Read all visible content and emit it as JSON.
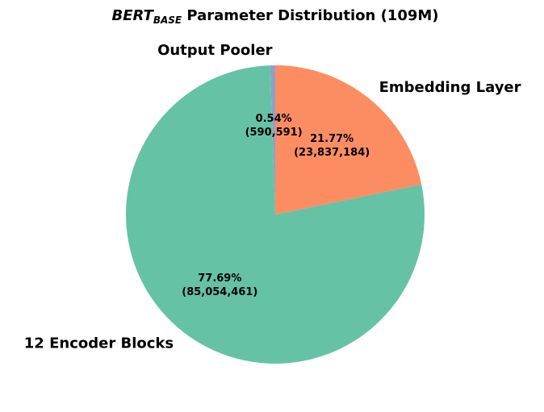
{
  "chart_data": {
    "type": "pie",
    "title": {
      "main": "BERT",
      "subscript": "BASE",
      "rest": " Parameter Distribution (109M)"
    },
    "start_angle_deg": 90,
    "direction": "counterclockwise",
    "slices": [
      {
        "label": "Output Pooler",
        "value": 590591,
        "percent_label": "0.54%",
        "count_label": "(590,591)",
        "color": "#8da0cb"
      },
      {
        "label": "12 Encoder Blocks",
        "value": 85054461,
        "percent_label": "77.69%",
        "count_label": "(85,054,461)",
        "color": "#66c2a5"
      },
      {
        "label": "Embedding Layer",
        "value": 23837184,
        "percent_label": "21.77%",
        "count_label": "(23,837,184)",
        "color": "#fc8d62"
      }
    ]
  }
}
